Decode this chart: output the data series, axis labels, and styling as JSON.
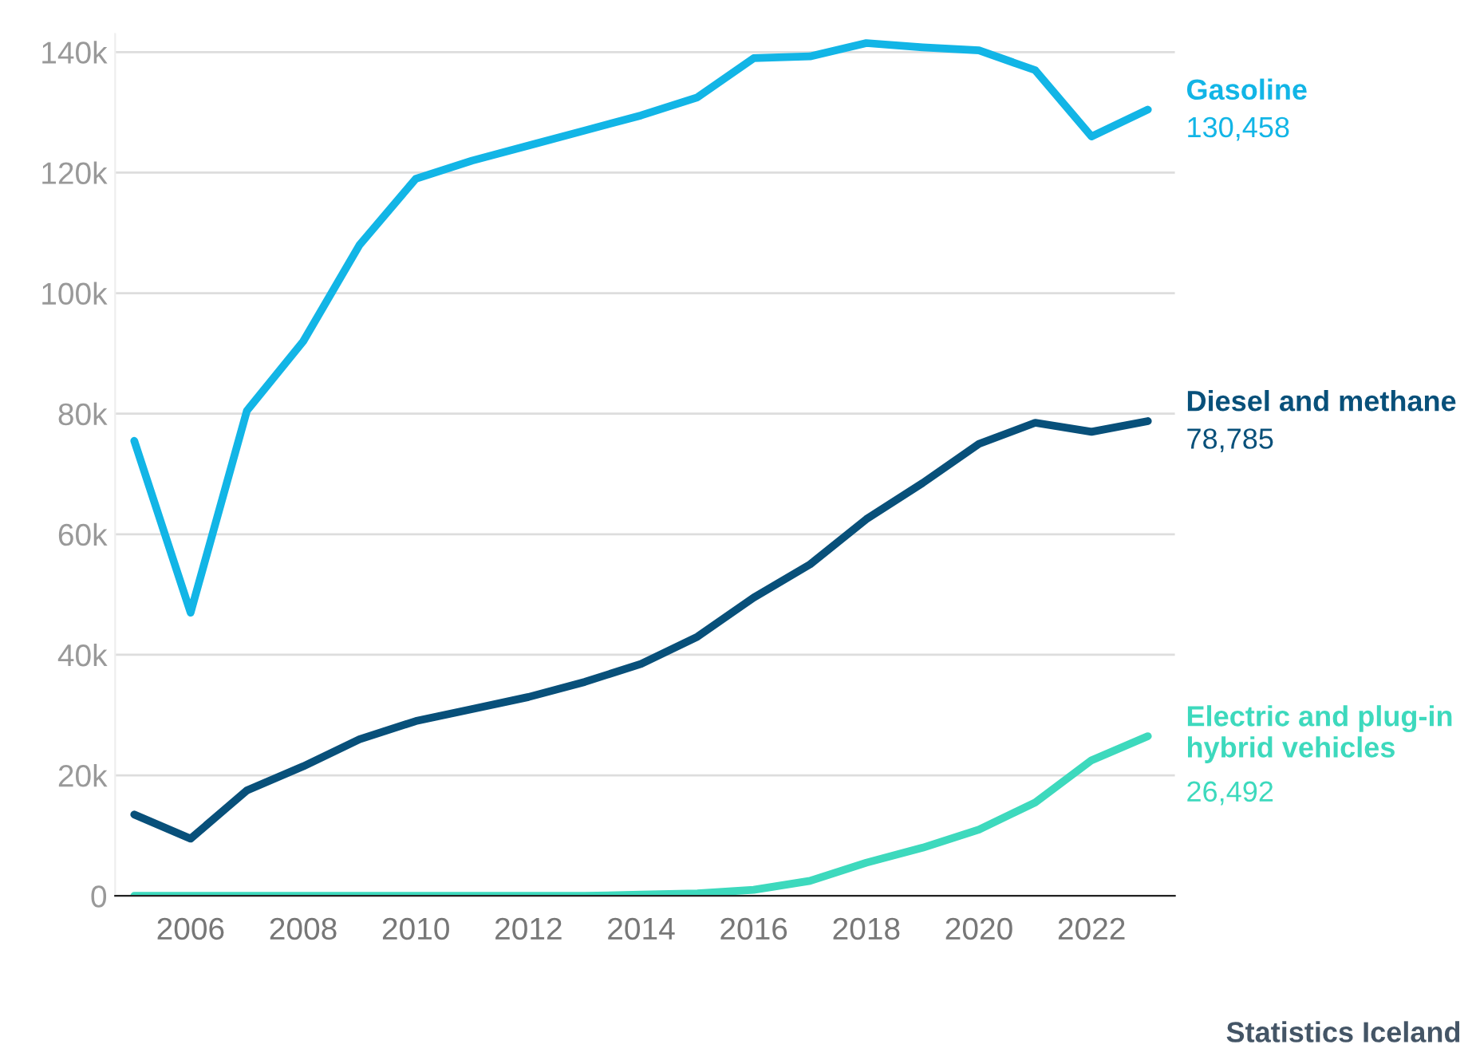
{
  "chart_data": {
    "type": "line",
    "x": [
      2005,
      2006,
      2007,
      2008,
      2009,
      2010,
      2011,
      2012,
      2013,
      2014,
      2015,
      2016,
      2017,
      2018,
      2019,
      2020,
      2021,
      2022,
      2023
    ],
    "series": [
      {
        "name": "Gasoline",
        "color": "#12b5e6",
        "values": [
          75500,
          47000,
          80500,
          92000,
          108000,
          119000,
          122000,
          124500,
          127000,
          129500,
          132500,
          139000,
          139300,
          141500,
          140800,
          140300,
          137000,
          126000,
          130458
        ],
        "value_labels": [
          null,
          null,
          null,
          null,
          null,
          null,
          null,
          null,
          null,
          null,
          null,
          null,
          null,
          null,
          null,
          null,
          null,
          null,
          "130,458"
        ]
      },
      {
        "name": "Diesel and methane",
        "color": "#08507a",
        "values": [
          13500,
          9500,
          17500,
          21500,
          26000,
          29000,
          31000,
          33000,
          35500,
          38500,
          43000,
          49500,
          55000,
          62500,
          68500,
          75000,
          78500,
          77000,
          78785
        ],
        "value_labels": [
          null,
          null,
          null,
          null,
          null,
          null,
          null,
          null,
          null,
          null,
          null,
          null,
          null,
          null,
          null,
          null,
          null,
          null,
          "78,785"
        ]
      },
      {
        "name": "Electric and plug-in hybrid vehicles",
        "color": "#3dd9bd",
        "values": [
          0,
          0,
          0,
          0,
          0,
          0,
          0,
          0,
          0,
          200,
          400,
          1000,
          2500,
          5500,
          8000,
          11000,
          15500,
          22500,
          26492
        ],
        "value_labels": [
          null,
          null,
          null,
          null,
          null,
          null,
          null,
          null,
          null,
          null,
          null,
          null,
          null,
          null,
          null,
          null,
          null,
          null,
          "26,492"
        ]
      }
    ],
    "xlim": [
      2004.66,
      2023.48
    ],
    "xticks": [
      2006,
      2008,
      2010,
      2012,
      2014,
      2016,
      2018,
      2020,
      2022
    ],
    "ylim": [
      0,
      143000
    ],
    "yticks": [
      {
        "value": 0,
        "label": "0"
      },
      {
        "value": 20000,
        "label": "20k"
      },
      {
        "value": 40000,
        "label": "40k"
      },
      {
        "value": 60000,
        "label": "60k"
      },
      {
        "value": 80000,
        "label": "80k"
      },
      {
        "value": 100000,
        "label": "100k"
      },
      {
        "value": 120000,
        "label": "120k"
      },
      {
        "value": 140000,
        "label": "140k"
      }
    ],
    "grid": "y",
    "legend": false,
    "marker": "none",
    "line_style": "solid",
    "annotations": [
      "Statistics Iceland"
    ]
  }
}
